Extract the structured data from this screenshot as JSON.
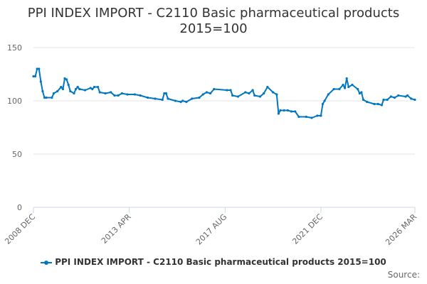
{
  "chart_data": {
    "type": "line",
    "title": "PPI INDEX IMPORT - C2110 Basic pharmaceutical products",
    "subtitle": "2015=100",
    "xlabel": "",
    "ylabel": "",
    "ylim": [
      0,
      150
    ],
    "yticks": [
      "0",
      "50",
      "100",
      "150"
    ],
    "xlim": [
      "2008-12",
      "2026-03"
    ],
    "xticks": [
      {
        "date": "2008-12",
        "label": "2008 DEC"
      },
      {
        "date": "2013-04",
        "label": "2013 APR"
      },
      {
        "date": "2017-08",
        "label": "2017 AUG"
      },
      {
        "date": "2021-12",
        "label": "2021 DEC"
      },
      {
        "date": "2026-03",
        "label": "2026 MAR"
      }
    ],
    "grid": true,
    "legend": "bottom",
    "color": "#0077c0",
    "series": [
      {
        "name": "PPI INDEX IMPORT - C2110 Basic pharmaceutical products 2015=100",
        "points": [
          [
            "2008-12",
            123
          ],
          [
            "2009-01",
            123
          ],
          [
            "2009-02",
            130
          ],
          [
            "2009-03",
            130
          ],
          [
            "2009-04",
            118
          ],
          [
            "2009-05",
            109
          ],
          [
            "2009-06",
            103
          ],
          [
            "2009-07",
            103
          ],
          [
            "2009-10",
            103
          ],
          [
            "2009-11",
            107
          ],
          [
            "2010-01",
            109
          ],
          [
            "2010-03",
            113
          ],
          [
            "2010-04",
            111
          ],
          [
            "2010-05",
            121
          ],
          [
            "2010-06",
            120
          ],
          [
            "2010-07",
            115
          ],
          [
            "2010-08",
            109
          ],
          [
            "2010-10",
            107
          ],
          [
            "2010-11",
            111
          ],
          [
            "2010-12",
            113
          ],
          [
            "2011-01",
            111
          ],
          [
            "2011-04",
            110
          ],
          [
            "2011-07",
            112
          ],
          [
            "2011-08",
            111
          ],
          [
            "2011-09",
            113
          ],
          [
            "2011-11",
            113
          ],
          [
            "2011-12",
            108
          ],
          [
            "2012-03",
            107
          ],
          [
            "2012-06",
            108
          ],
          [
            "2012-08",
            105
          ],
          [
            "2012-10",
            105
          ],
          [
            "2012-12",
            107
          ],
          [
            "2013-03",
            106
          ],
          [
            "2013-07",
            106
          ],
          [
            "2013-10",
            105
          ],
          [
            "2014-02",
            103
          ],
          [
            "2014-06",
            102
          ],
          [
            "2014-10",
            101
          ],
          [
            "2014-11",
            107
          ],
          [
            "2014-12",
            107
          ],
          [
            "2015-01",
            102
          ],
          [
            "2015-05",
            100
          ],
          [
            "2015-08",
            99
          ],
          [
            "2015-09",
            100
          ],
          [
            "2015-11",
            99
          ],
          [
            "2016-02",
            102
          ],
          [
            "2016-06",
            103
          ],
          [
            "2016-08",
            106
          ],
          [
            "2016-10",
            108
          ],
          [
            "2016-12",
            107
          ],
          [
            "2017-02",
            111
          ],
          [
            "2017-09",
            110
          ],
          [
            "2017-11",
            110
          ],
          [
            "2017-12",
            105
          ],
          [
            "2018-03",
            104
          ],
          [
            "2018-07",
            108
          ],
          [
            "2018-09",
            107
          ],
          [
            "2018-11",
            110
          ],
          [
            "2018-12",
            105
          ],
          [
            "2019-03",
            104
          ],
          [
            "2019-05",
            107
          ],
          [
            "2019-07",
            113
          ],
          [
            "2019-10",
            108
          ],
          [
            "2019-12",
            106
          ],
          [
            "2020-01",
            88
          ],
          [
            "2020-02",
            91
          ],
          [
            "2020-04",
            91
          ],
          [
            "2020-06",
            91
          ],
          [
            "2020-08",
            90
          ],
          [
            "2020-10",
            90
          ],
          [
            "2020-12",
            85
          ],
          [
            "2021-04",
            85
          ],
          [
            "2021-07",
            84
          ],
          [
            "2021-10",
            86
          ],
          [
            "2021-12",
            86
          ],
          [
            "2022-01",
            97
          ],
          [
            "2022-02",
            100
          ],
          [
            "2022-04",
            106
          ],
          [
            "2022-07",
            111
          ],
          [
            "2022-10",
            111
          ],
          [
            "2022-12",
            115
          ],
          [
            "2023-01",
            112
          ],
          [
            "2023-02",
            121
          ],
          [
            "2023-03",
            113
          ],
          [
            "2023-05",
            115
          ],
          [
            "2023-08",
            111
          ],
          [
            "2023-09",
            107
          ],
          [
            "2023-10",
            108
          ],
          [
            "2023-11",
            101
          ],
          [
            "2024-01",
            99
          ],
          [
            "2024-05",
            97
          ],
          [
            "2024-07",
            97
          ],
          [
            "2024-09",
            96
          ],
          [
            "2024-10",
            101
          ],
          [
            "2024-12",
            101
          ],
          [
            "2025-02",
            104
          ],
          [
            "2025-04",
            103
          ],
          [
            "2025-06",
            105
          ],
          [
            "2025-10",
            104
          ],
          [
            "2025-11",
            105
          ],
          [
            "2026-01",
            102
          ],
          [
            "2026-03",
            101
          ]
        ]
      }
    ],
    "source_label": "Source:"
  }
}
